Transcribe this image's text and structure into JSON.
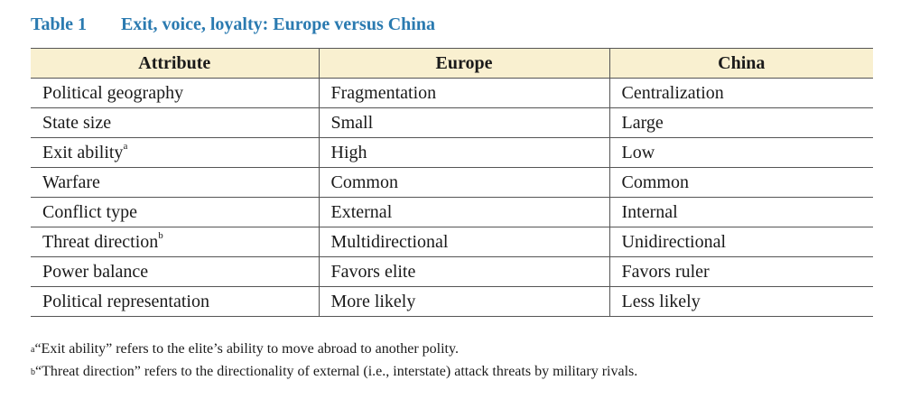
{
  "caption": {
    "label": "Table 1",
    "title": "Exit, voice, loyalty: Europe versus China"
  },
  "table": {
    "headers": [
      "Attribute",
      "Europe",
      "China"
    ],
    "rows": [
      {
        "attribute": "Political geography",
        "note": "",
        "europe": "Fragmentation",
        "china": "Centralization"
      },
      {
        "attribute": "State size",
        "note": "",
        "europe": "Small",
        "china": "Large"
      },
      {
        "attribute": "Exit ability",
        "note": "a",
        "europe": "High",
        "china": "Low"
      },
      {
        "attribute": "Warfare",
        "note": "",
        "europe": "Common",
        "china": "Common"
      },
      {
        "attribute": "Conflict type",
        "note": "",
        "europe": "External",
        "china": "Internal"
      },
      {
        "attribute": "Threat direction",
        "note": "b",
        "europe": "Multidirectional",
        "china": "Unidirectional"
      },
      {
        "attribute": "Power balance",
        "note": "",
        "europe": "Favors elite",
        "china": "Favors ruler"
      },
      {
        "attribute": "Political representation",
        "note": "",
        "europe": "More likely",
        "china": "Less likely"
      }
    ]
  },
  "footnotes": [
    {
      "mark": "a",
      "text": "“Exit ability” refers to the elite’s ability to move abroad to another polity."
    },
    {
      "mark": "b",
      "text": "“Threat direction” refers to the directionality of external (i.e., interstate) attack threats by military rivals."
    }
  ]
}
